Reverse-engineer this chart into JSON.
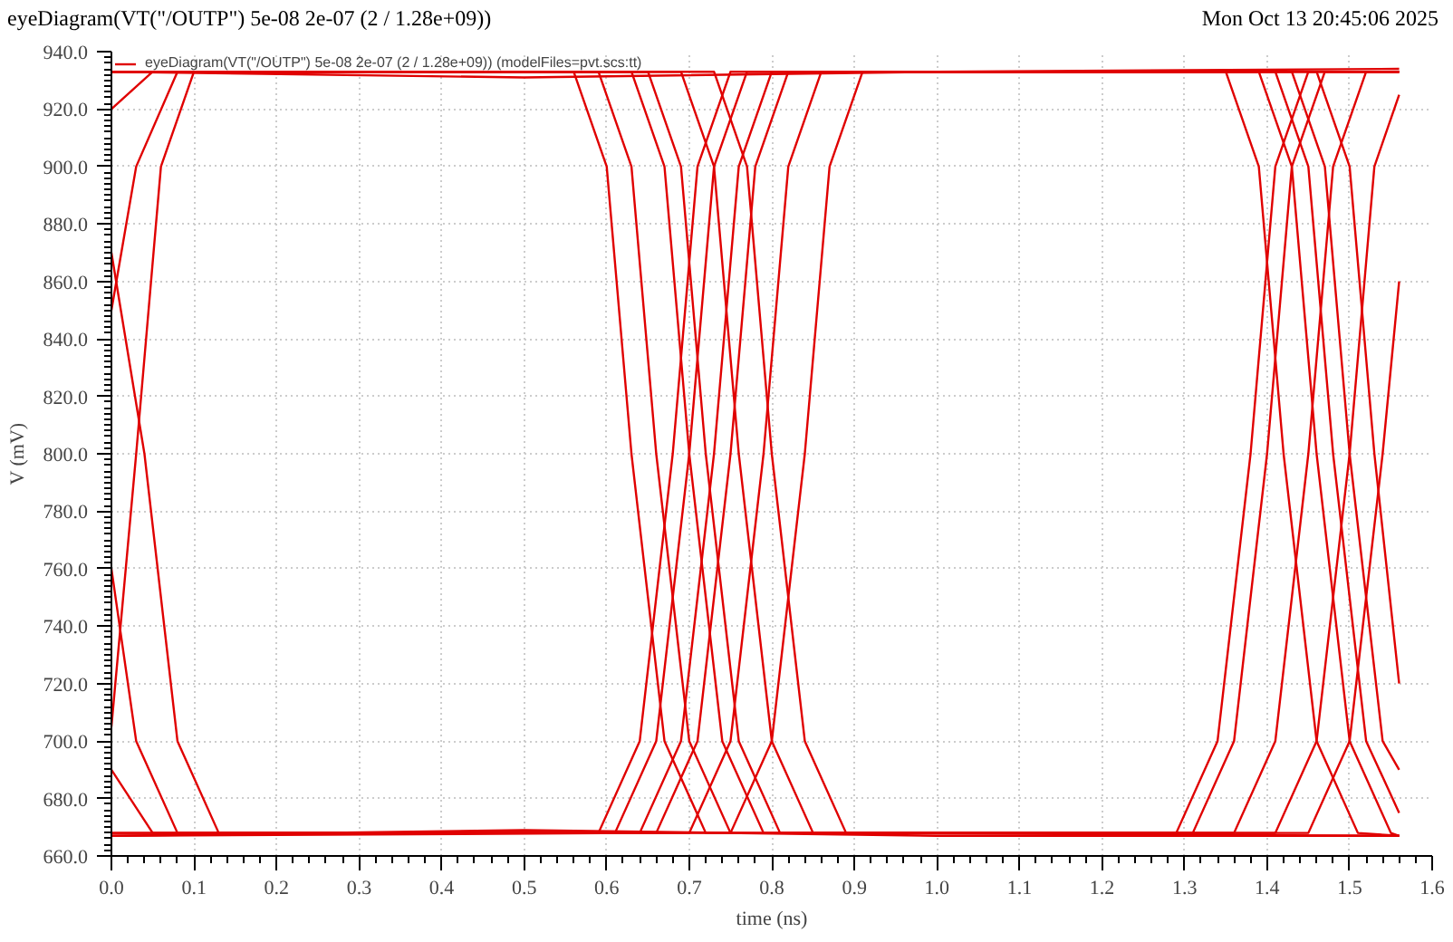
{
  "chart_data": {
    "type": "line",
    "title": "eyeDiagram(VT(\"/OUTP\") 5e-08 2e-07 (2 / 1.28e+09))",
    "annotations": [
      "Mon Oct 13 20:45:06 2025"
    ],
    "xlabel": "time (ns)",
    "ylabel": "V (mV)",
    "xlim": [
      0,
      1.6
    ],
    "ylim": [
      660,
      940
    ],
    "xticks": [
      {
        "value": 0,
        "label": "0.0"
      },
      {
        "value": 0.1,
        "label": "0.1"
      },
      {
        "value": 0.2,
        "label": "0.2"
      },
      {
        "value": 0.3,
        "label": "0.3"
      },
      {
        "value": 0.4,
        "label": "0.4"
      },
      {
        "value": 0.5,
        "label": "0.5"
      },
      {
        "value": 0.6,
        "label": "0.6"
      },
      {
        "value": 0.7,
        "label": "0.7"
      },
      {
        "value": 0.8,
        "label": "0.8"
      },
      {
        "value": 0.9,
        "label": "0.9"
      },
      {
        "value": 1.0,
        "label": "1.0"
      },
      {
        "value": 1.1,
        "label": "1.1"
      },
      {
        "value": 1.2,
        "label": "1.2"
      },
      {
        "value": 1.3,
        "label": "1.3"
      },
      {
        "value": 1.4,
        "label": "1.4"
      },
      {
        "value": 1.5,
        "label": "1.5"
      },
      {
        "value": 1.6,
        "label": "1.6"
      }
    ],
    "yticks": [
      {
        "value": 660,
        "label": "660.0"
      },
      {
        "value": 680,
        "label": "680.0"
      },
      {
        "value": 700,
        "label": "700.0"
      },
      {
        "value": 720,
        "label": "720.0"
      },
      {
        "value": 740,
        "label": "740.0"
      },
      {
        "value": 760,
        "label": "760.0"
      },
      {
        "value": 780,
        "label": "780.0"
      },
      {
        "value": 800,
        "label": "800.0"
      },
      {
        "value": 820,
        "label": "820.0"
      },
      {
        "value": 840,
        "label": "840.0"
      },
      {
        "value": 860,
        "label": "860.0"
      },
      {
        "value": 880,
        "label": "880.0"
      },
      {
        "value": 900,
        "label": "900.0"
      },
      {
        "value": 920,
        "label": "920.0"
      },
      {
        "value": 940,
        "label": "940.0"
      }
    ],
    "grid": true,
    "legend": "top left",
    "marker": "none",
    "line_style": "solid",
    "series": [
      {
        "name": "eyeDiagram(VT(\"/OUTP\") 5e-08 2e-07 (2 / 1.28e+09)) (modelFiles=pvt.scs:tt)",
        "color": "#e00000",
        "x": [
          0,
          0.5,
          1.0,
          1.56
        ],
        "values": [
          933,
          931,
          933,
          934
        ]
      },
      {
        "color": "#e00000",
        "x": [
          0,
          0.5,
          1.0,
          1.56
        ],
        "values": [
          667,
          669,
          667,
          667
        ]
      },
      {
        "color": "#e00000",
        "x": [
          0,
          0.03,
          0.08,
          0.65,
          0.69,
          0.72,
          0.76,
          0.81,
          1.36,
          1.41,
          1.45,
          1.48,
          1.52,
          1.56
        ],
        "values": [
          850,
          900,
          933,
          933,
          900,
          800,
          700,
          668,
          668,
          700,
          800,
          900,
          933,
          933
        ]
      },
      {
        "color": "#e00000",
        "x": [
          0,
          0.03,
          0.08,
          0.59,
          0.64,
          0.68,
          0.71,
          0.75,
          1.41,
          1.45,
          1.48,
          1.52,
          1.56
        ],
        "values": [
          760,
          700,
          668,
          668,
          700,
          800,
          900,
          933,
          933,
          900,
          800,
          700,
          675
        ]
      },
      {
        "color": "#e00000",
        "x": [
          0,
          0.73,
          0.77,
          0.8,
          0.84,
          0.89,
          1.56
        ],
        "values": [
          933,
          933,
          900,
          800,
          700,
          668,
          667
        ]
      },
      {
        "color": "#e00000",
        "x": [
          0,
          0.66,
          0.71,
          0.75,
          0.78,
          0.82,
          1.35,
          1.39,
          1.42,
          1.46,
          1.51,
          1.56
        ],
        "values": [
          668,
          668,
          700,
          800,
          900,
          933,
          933,
          900,
          800,
          700,
          668,
          667
        ]
      },
      {
        "color": "#e00000",
        "x": [
          0,
          0.05,
          0.59,
          0.63,
          0.66,
          0.7,
          0.75,
          1.41,
          1.46,
          1.5,
          1.53,
          1.56
        ],
        "values": [
          920,
          933,
          933,
          900,
          800,
          700,
          668,
          668,
          700,
          800,
          900,
          925
        ]
      },
      {
        "color": "#e00000",
        "x": [
          0,
          0.05,
          0.7,
          0.75,
          0.79,
          0.82,
          0.86,
          1.56
        ],
        "values": [
          690,
          668,
          668,
          700,
          800,
          900,
          933,
          933
        ]
      },
      {
        "color": "#e00000",
        "x": [
          0,
          0.69,
          0.73,
          0.76,
          0.8,
          0.85,
          1.29,
          1.34,
          1.38,
          1.41,
          1.45,
          1.56
        ],
        "values": [
          933,
          933,
          900,
          800,
          700,
          668,
          668,
          700,
          800,
          900,
          933,
          933
        ]
      },
      {
        "color": "#e00000",
        "x": [
          0,
          0.61,
          0.66,
          0.7,
          0.73,
          0.77,
          1.46,
          1.5,
          1.53,
          1.56
        ],
        "values": [
          668,
          668,
          700,
          800,
          900,
          933,
          933,
          900,
          800,
          720
        ]
      },
      {
        "color": "#e00000",
        "x": [
          0,
          0.04,
          0.08,
          0.13,
          0.75,
          0.8,
          0.84,
          0.87,
          0.91,
          1.39,
          1.43,
          1.46,
          1.5,
          1.55,
          1.56
        ],
        "values": [
          870,
          800,
          700,
          668,
          668,
          700,
          800,
          900,
          933,
          933,
          900,
          800,
          700,
          668,
          667
        ]
      },
      {
        "color": "#e00000",
        "x": [
          0,
          0.03,
          0.06,
          0.1,
          0.56,
          0.6,
          0.63,
          0.67,
          0.72,
          1.31,
          1.36,
          1.4,
          1.43,
          1.47,
          1.56
        ],
        "values": [
          705,
          800,
          900,
          933,
          933,
          900,
          800,
          700,
          668,
          668,
          700,
          800,
          900,
          933,
          933
        ]
      },
      {
        "color": "#e00000",
        "x": [
          0,
          0.64,
          0.69,
          0.73,
          0.76,
          0.8,
          1.43,
          1.47,
          1.5,
          1.54,
          1.56
        ],
        "values": [
          667,
          668,
          700,
          800,
          900,
          933,
          933,
          900,
          800,
          700,
          690
        ]
      },
      {
        "color": "#e00000",
        "x": [
          0,
          0.63,
          0.67,
          0.7,
          0.74,
          0.79,
          1.45,
          1.5,
          1.54,
          1.56
        ],
        "values": [
          933,
          933,
          900,
          800,
          700,
          668,
          668,
          700,
          800,
          860
        ]
      }
    ]
  }
}
